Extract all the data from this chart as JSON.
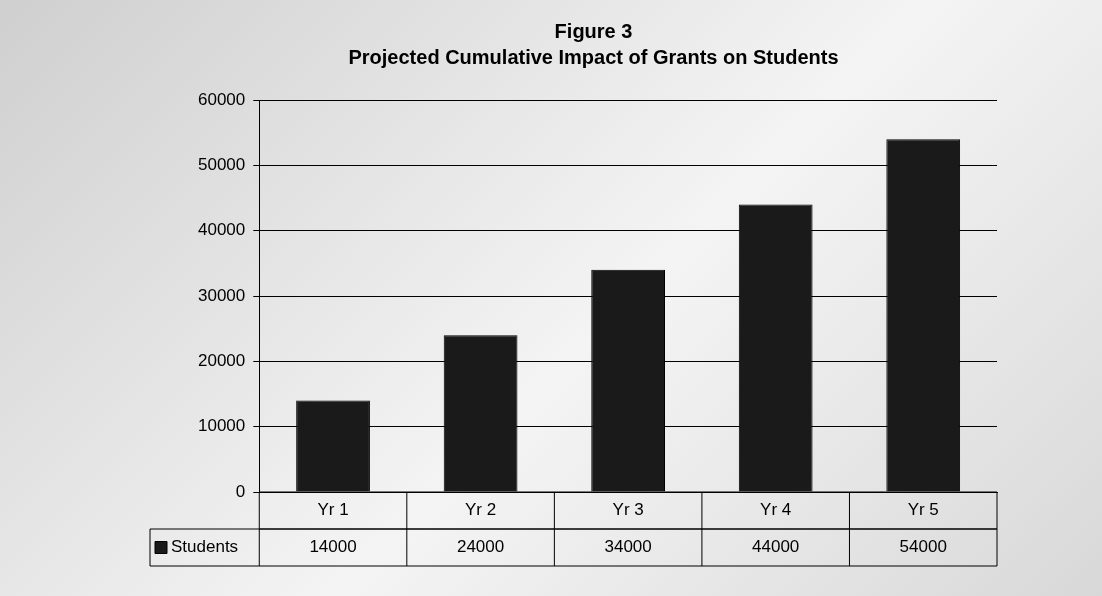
{
  "chart_data": {
    "type": "bar",
    "title": "Figure 3",
    "subtitle": "Projected Cumulative Impact of Grants on Students",
    "categories": [
      "Yr 1",
      "Yr 2",
      "Yr 3",
      "Yr 4",
      "Yr 5"
    ],
    "series": [
      {
        "name": "Students",
        "color": "#1a1a1a",
        "values": [
          14000,
          24000,
          34000,
          44000,
          54000
        ]
      }
    ],
    "ylim": [
      0,
      60000
    ],
    "yticks": [
      0,
      10000,
      20000,
      30000,
      40000,
      50000,
      60000
    ],
    "grid": "y",
    "legend": "bottom",
    "data_labels": true
  }
}
